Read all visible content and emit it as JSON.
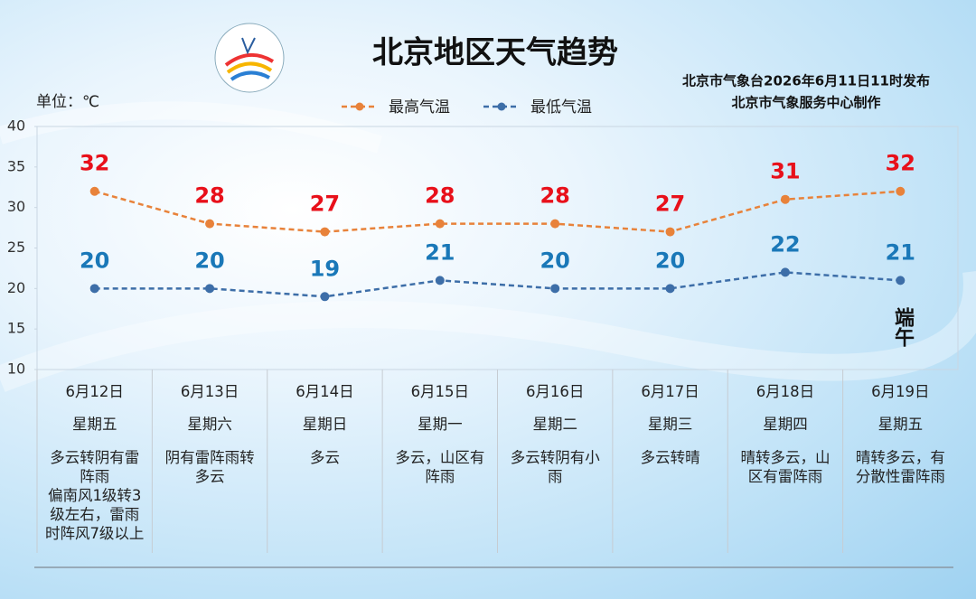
{
  "header": {
    "title": "北京地区天气趋势",
    "issuer": "北京市气象台2026年6月11日11时发布",
    "producer": "北京市气象服务中心制作"
  },
  "chart_data": {
    "type": "line",
    "y_label": "单位：℃",
    "categories": [
      "6月12日",
      "6月13日",
      "6月14日",
      "6月15日",
      "6月16日",
      "6月17日",
      "6月18日",
      "6月19日"
    ],
    "series": [
      {
        "name": "最高气温",
        "color": "#e8823a",
        "label_color": "#e8101a",
        "values": [
          32,
          28,
          27,
          28,
          28,
          27,
          31,
          32
        ]
      },
      {
        "name": "最低气温",
        "color": "#3d6ea8",
        "label_color": "#1a78b8",
        "values": [
          20,
          20,
          19,
          21,
          20,
          20,
          22,
          21
        ]
      }
    ],
    "ylim": [
      10,
      40
    ],
    "yticks": [
      10,
      15,
      20,
      25,
      30,
      35,
      40
    ],
    "grid": false,
    "annotation": "端午"
  },
  "table": {
    "weekdays": [
      "星期五",
      "星期六",
      "星期日",
      "星期一",
      "星期二",
      "星期三",
      "星期四",
      "星期五"
    ],
    "weather": [
      [
        "多云转阴有雷阵雨",
        "偏南风1级转3级左右，雷雨时阵风7级以上"
      ],
      [
        "阴有雷阵雨转多云"
      ],
      [
        "多云"
      ],
      [
        "多云，山区有阵雨"
      ],
      [
        "多云转阴有小雨"
      ],
      [
        "多云转晴"
      ],
      [
        "晴转多云，山区有雷阵雨"
      ],
      [
        "晴转多云，有分散性雷阵雨"
      ]
    ]
  }
}
